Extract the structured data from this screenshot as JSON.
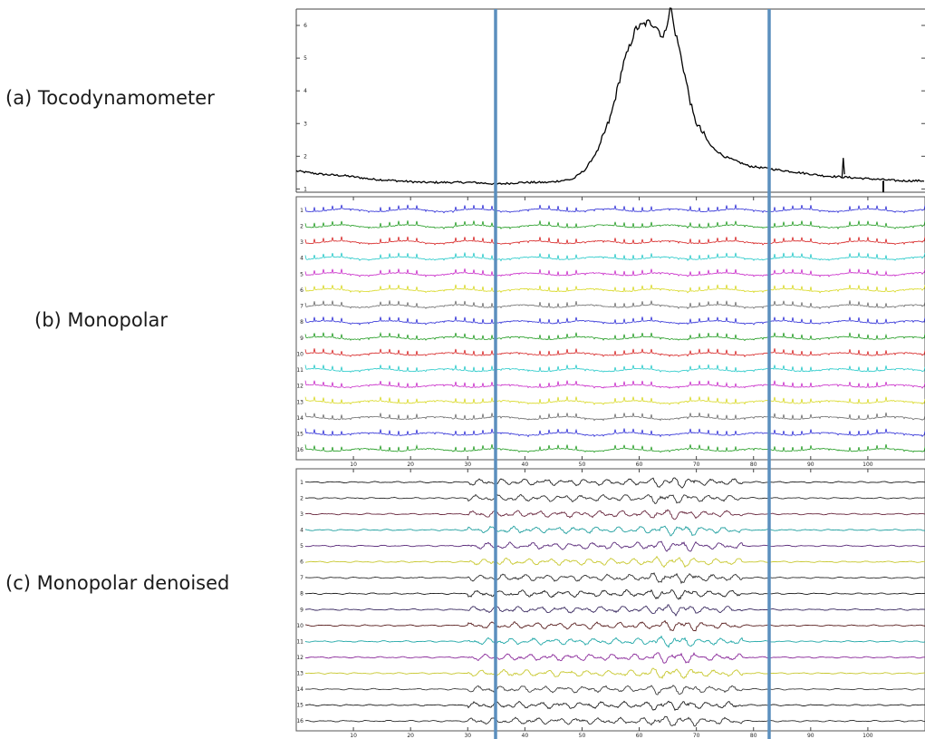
{
  "labels": {
    "a": "(a) Tocodynamometer",
    "b": "(b) Monopolar",
    "c": "(c) Monopolar denoised"
  },
  "colors": {
    "marker_lines": "#5b8fbe",
    "toco_trace": "#000000",
    "channel_palette": [
      "#2b2bd6",
      "#1e9a1e",
      "#d62020",
      "#22c8c8",
      "#c828c8",
      "#d8d820",
      "#6a6a6a"
    ],
    "denoised_palette": [
      "#202020",
      "#303030",
      "#6a2a40",
      "#22a0a0",
      "#5a2a7a",
      "#c8c830",
      "#303030",
      "#202020",
      "#3a2a60",
      "#5a2020",
      "#22a8a8",
      "#8a2a9a",
      "#c8c830",
      "#404040",
      "#202020",
      "#303030"
    ]
  },
  "chart_data": [
    {
      "type": "line",
      "name": "tocodynamometer",
      "yticks": [
        "1",
        "2",
        "3",
        "4",
        "5",
        "6"
      ],
      "ylim": [
        0.9,
        6.5
      ],
      "xlim": [
        0,
        250
      ],
      "x": [
        0,
        10,
        20,
        30,
        40,
        50,
        60,
        70,
        80,
        90,
        100,
        110,
        115,
        120,
        125,
        130,
        135,
        140,
        143,
        146,
        149,
        150,
        152,
        155,
        158,
        160,
        165,
        170,
        175,
        180,
        190,
        200,
        210,
        220,
        230,
        240,
        250
      ],
      "values": [
        1.55,
        1.45,
        1.4,
        1.3,
        1.25,
        1.2,
        1.2,
        1.2,
        1.15,
        1.2,
        1.2,
        1.3,
        1.6,
        2.2,
        3.2,
        4.8,
        5.9,
        6.1,
        6.0,
        5.6,
        6.6,
        6.0,
        5.4,
        4.3,
        3.2,
        2.9,
        2.3,
        2.0,
        1.85,
        1.7,
        1.6,
        1.5,
        1.4,
        1.35,
        1.3,
        1.25,
        1.25
      ]
    },
    {
      "type": "line",
      "name": "monopolar",
      "channels": [
        "1",
        "2",
        "3",
        "4",
        "5",
        "6",
        "7",
        "8",
        "9",
        "10",
        "11",
        "12",
        "13",
        "14",
        "15",
        "16"
      ],
      "xticks": [
        "10",
        "20",
        "30",
        "40",
        "50",
        "60",
        "70",
        "80",
        "90",
        "100"
      ],
      "xlim": [
        0,
        110
      ]
    },
    {
      "type": "line",
      "name": "monopolar-denoised",
      "channels": [
        "1",
        "2",
        "3",
        "4",
        "5",
        "6",
        "7",
        "8",
        "9",
        "10",
        "11",
        "12",
        "13",
        "14",
        "15",
        "16"
      ],
      "xticks": [
        "10",
        "20",
        "30",
        "40",
        "50",
        "60",
        "70",
        "80",
        "90",
        "100"
      ],
      "xlim": [
        0,
        110
      ]
    }
  ]
}
